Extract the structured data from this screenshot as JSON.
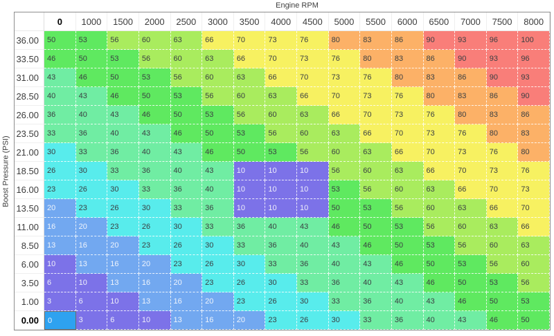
{
  "axes": {
    "x_title": "Engine RPM",
    "y_title": "Boost Pressure (PSI)"
  },
  "chart_data": {
    "type": "heatmap",
    "title": "",
    "xlabel": "Engine RPM",
    "ylabel": "Boost Pressure (PSI)",
    "x_ticks": [
      "0",
      "1000",
      "1500",
      "2000",
      "2500",
      "3000",
      "3500",
      "4000",
      "4500",
      "5000",
      "5500",
      "6000",
      "6500",
      "7000",
      "7500",
      "8000"
    ],
    "y_ticks": [
      "36.00",
      "33.50",
      "31.00",
      "28.50",
      "26.00",
      "23.50",
      "21.00",
      "18.50",
      "16.00",
      "13.50",
      "11.00",
      "8.50",
      "6.00",
      "3.50",
      "1.00",
      "0.00"
    ],
    "values": [
      [
        50,
        53,
        56,
        60,
        63,
        66,
        70,
        73,
        76,
        80,
        83,
        86,
        90,
        93,
        96,
        100
      ],
      [
        46,
        50,
        53,
        56,
        60,
        63,
        66,
        70,
        73,
        76,
        80,
        83,
        86,
        90,
        93,
        96
      ],
      [
        43,
        46,
        50,
        53,
        56,
        60,
        63,
        66,
        70,
        73,
        76,
        80,
        83,
        86,
        90,
        93
      ],
      [
        40,
        43,
        46,
        50,
        53,
        56,
        60,
        63,
        66,
        70,
        73,
        76,
        80,
        83,
        86,
        90
      ],
      [
        36,
        40,
        43,
        46,
        50,
        53,
        56,
        60,
        63,
        66,
        70,
        73,
        76,
        80,
        83,
        86
      ],
      [
        33,
        36,
        40,
        43,
        46,
        50,
        53,
        56,
        60,
        63,
        66,
        70,
        73,
        76,
        80,
        83
      ],
      [
        30,
        33,
        36,
        40,
        43,
        46,
        50,
        53,
        56,
        60,
        63,
        66,
        70,
        73,
        76,
        80
      ],
      [
        26,
        30,
        33,
        36,
        40,
        43,
        10,
        10,
        10,
        56,
        60,
        63,
        66,
        70,
        73,
        76
      ],
      [
        23,
        26,
        30,
        33,
        36,
        40,
        10,
        10,
        10,
        53,
        56,
        60,
        63,
        66,
        70,
        73
      ],
      [
        20,
        23,
        26,
        30,
        33,
        36,
        10,
        10,
        10,
        50,
        53,
        56,
        60,
        63,
        66,
        70
      ],
      [
        16,
        20,
        23,
        26,
        30,
        33,
        36,
        40,
        43,
        46,
        50,
        53,
        56,
        60,
        63,
        66
      ],
      [
        13,
        16,
        20,
        23,
        26,
        30,
        33,
        36,
        40,
        43,
        46,
        50,
        53,
        56,
        60,
        63
      ],
      [
        10,
        13,
        16,
        20,
        23,
        26,
        30,
        33,
        36,
        40,
        43,
        46,
        50,
        53,
        56,
        60
      ],
      [
        6,
        10,
        13,
        16,
        20,
        23,
        26,
        30,
        33,
        36,
        40,
        43,
        46,
        50,
        53,
        56
      ],
      [
        3,
        6,
        10,
        13,
        16,
        20,
        23,
        26,
        30,
        33,
        36,
        40,
        43,
        46,
        50,
        53
      ],
      [
        0,
        3,
        6,
        10,
        13,
        16,
        20,
        23,
        26,
        30,
        33,
        36,
        40,
        43,
        46,
        50
      ]
    ]
  },
  "table": {
    "selected": {
      "row_index": 15,
      "col_index": 0,
      "value": 0
    }
  },
  "colormap": {
    "selected_bg": "#2EA2F0",
    "bands": [
      {
        "max": 0,
        "bg": "#2EA2F0",
        "fg": "#F4F7FF"
      },
      {
        "max": 12,
        "bg": "#7C72E8",
        "fg": "#EFEFFA"
      },
      {
        "max": 22,
        "bg": "#72A8F0",
        "fg": "#EFF4FC"
      },
      {
        "max": 31,
        "bg": "#58ECEC",
        "fg": "#3A3F42"
      },
      {
        "max": 44,
        "bg": "#70EDA3",
        "fg": "#3A3F42"
      },
      {
        "max": 54,
        "bg": "#5FE960",
        "fg": "#3A3F42"
      },
      {
        "max": 64,
        "bg": "#A9EC5E",
        "fg": "#3A3F42"
      },
      {
        "max": 78,
        "bg": "#F7F161",
        "fg": "#3A3F42"
      },
      {
        "max": 88,
        "bg": "#FCB167",
        "fg": "#3A3F42"
      },
      {
        "max": 100,
        "bg": "#F97E79",
        "fg": "#3A3F42"
      }
    ]
  }
}
